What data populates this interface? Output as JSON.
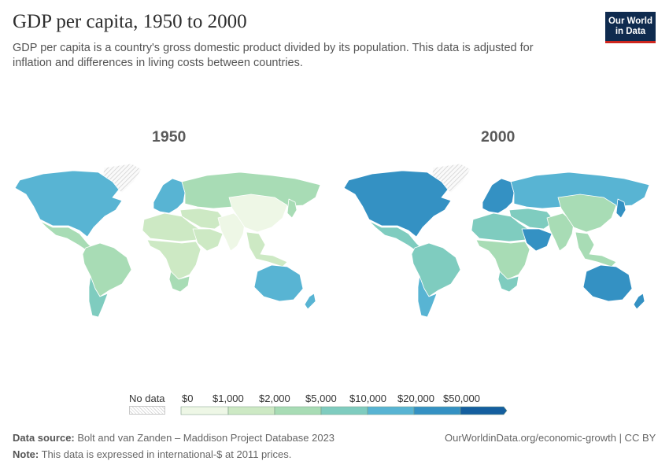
{
  "title": "GDP per capita, 1950 to 2000",
  "subtitle": "GDP per capita is a country's gross domestic product divided by its population. This data is adjusted for inflation and differences in living costs between countries.",
  "logo": {
    "line1": "Our World",
    "line2": "in Data"
  },
  "maps": [
    {
      "year": "1950"
    },
    {
      "year": "2000"
    }
  ],
  "legend": {
    "no_data_label": "No data",
    "ticks": [
      "$0",
      "$1,000",
      "$2,000",
      "$5,000",
      "$10,000",
      "$20,000",
      "$50,000"
    ],
    "colors": [
      "#eef7e6",
      "#cde9c4",
      "#a8dcb5",
      "#7fccbf",
      "#58b4d3",
      "#3491c3",
      "#145f9f"
    ]
  },
  "footer": {
    "source_label": "Data source:",
    "source_text": "Bolt and van Zanden – Maddison Project Database 2023",
    "url": "OurWorldinData.org/economic-growth | CC BY",
    "note_label": "Note:",
    "note_text": "This data is expressed in international-$ at 2011 prices."
  },
  "regions": {
    "1950": {
      "north_america": "#58b4d3",
      "greenland": "nodata",
      "mexico_central": "#a8dcb5",
      "south_america": "#a8dcb5",
      "southern_cone": "#7fccbf",
      "western_europe": "#58b4d3",
      "eastern_europe_ussr": "#a8dcb5",
      "middle_east": "#cde9c4",
      "north_africa": "#cde9c4",
      "sub_saharan_africa": "#cde9c4",
      "south_africa": "#a8dcb5",
      "south_asia": "#eef7e6",
      "china": "#eef7e6",
      "southeast_asia": "#cde9c4",
      "japan": "#a8dcb5",
      "australia": "#58b4d3",
      "new_zealand": "#58b4d3",
      "arabia": "#cde9c4"
    },
    "2000": {
      "north_america": "#3491c3",
      "greenland": "nodata",
      "mexico_central": "#7fccbf",
      "south_america": "#7fccbf",
      "southern_cone": "#58b4d3",
      "western_europe": "#3491c3",
      "eastern_europe_ussr": "#58b4d3",
      "middle_east": "#7fccbf",
      "north_africa": "#7fccbf",
      "sub_saharan_africa": "#a8dcb5",
      "south_africa": "#7fccbf",
      "south_asia": "#a8dcb5",
      "china": "#a8dcb5",
      "southeast_asia": "#a8dcb5",
      "japan": "#3491c3",
      "australia": "#3491c3",
      "new_zealand": "#3491c3",
      "arabia": "#3491c3"
    }
  }
}
